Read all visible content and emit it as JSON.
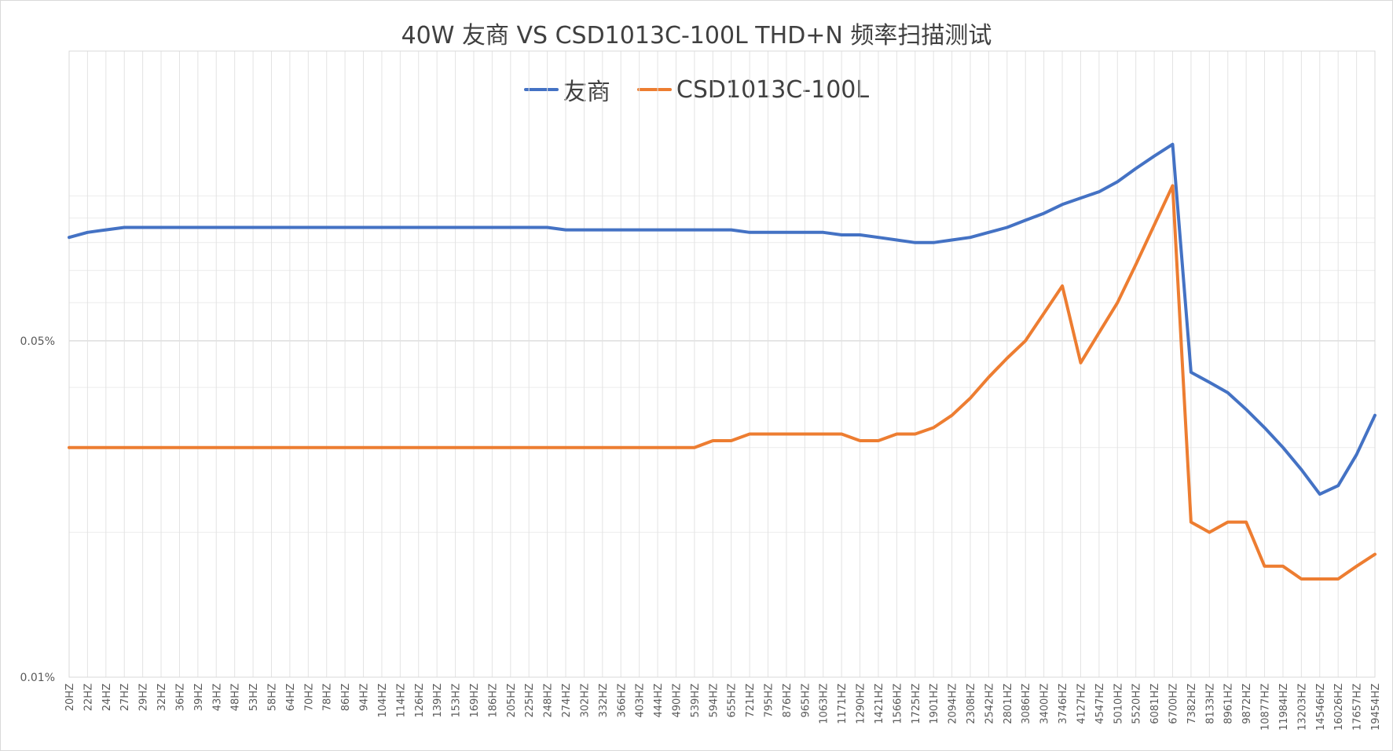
{
  "chart_data": {
    "type": "line",
    "title": "40W 友商 VS CSD1013C-100L THD+N 频率扫描测试",
    "xlabel": "",
    "ylabel": "",
    "y_scale": "log",
    "ylim": [
      0.01,
      0.2
    ],
    "y_ticks": [
      "0.05%",
      "0.01%"
    ],
    "y_tick_values": [
      0.05,
      0.01
    ],
    "grid": true,
    "legend_position": "top",
    "categories": [
      "20HZ",
      "22HZ",
      "24HZ",
      "27HZ",
      "29HZ",
      "32HZ",
      "36HZ",
      "39HZ",
      "43HZ",
      "48HZ",
      "53HZ",
      "58HZ",
      "64HZ",
      "70HZ",
      "78HZ",
      "86HZ",
      "94HZ",
      "104HZ",
      "114HZ",
      "126HZ",
      "139HZ",
      "153HZ",
      "169HZ",
      "186HZ",
      "205HZ",
      "225HZ",
      "248HZ",
      "274HZ",
      "302HZ",
      "332HZ",
      "366HZ",
      "403HZ",
      "444HZ",
      "490HZ",
      "539HZ",
      "594HZ",
      "655HZ",
      "721HZ",
      "795HZ",
      "876HZ",
      "965HZ",
      "1063HZ",
      "1171HZ",
      "1290HZ",
      "1421HZ",
      "1566HZ",
      "1725HZ",
      "1901HZ",
      "2094HZ",
      "2308HZ",
      "2542HZ",
      "2801HZ",
      "3086HZ",
      "3400HZ",
      "3746HZ",
      "4127HZ",
      "4547HZ",
      "5010HZ",
      "5520HZ",
      "6081HZ",
      "6700HZ",
      "7382HZ",
      "8133HZ",
      "8961HZ",
      "9872HZ",
      "10877HZ",
      "11984HZ",
      "13203HZ",
      "14546HZ",
      "16026HZ",
      "17657HZ",
      "19454HZ"
    ],
    "series": [
      {
        "name": "友商",
        "color": "#4472C4",
        "values": [
          0.082,
          0.084,
          0.085,
          0.086,
          0.086,
          0.086,
          0.086,
          0.086,
          0.086,
          0.086,
          0.086,
          0.086,
          0.086,
          0.086,
          0.086,
          0.086,
          0.086,
          0.086,
          0.086,
          0.086,
          0.086,
          0.086,
          0.086,
          0.086,
          0.086,
          0.086,
          0.086,
          0.085,
          0.085,
          0.085,
          0.085,
          0.085,
          0.085,
          0.085,
          0.085,
          0.085,
          0.085,
          0.084,
          0.084,
          0.084,
          0.084,
          0.084,
          0.083,
          0.083,
          0.082,
          0.081,
          0.08,
          0.08,
          0.081,
          0.082,
          0.084,
          0.086,
          0.089,
          0.092,
          0.096,
          0.099,
          0.102,
          0.107,
          0.114,
          0.121,
          0.128,
          0.043,
          0.041,
          0.039,
          0.036,
          0.033,
          0.03,
          0.027,
          0.024,
          0.025,
          0.029,
          0.035
        ]
      },
      {
        "name": "CSD1013C-100L",
        "color": "#ED7D31",
        "values": [
          0.03,
          0.03,
          0.03,
          0.03,
          0.03,
          0.03,
          0.03,
          0.03,
          0.03,
          0.03,
          0.03,
          0.03,
          0.03,
          0.03,
          0.03,
          0.03,
          0.03,
          0.03,
          0.03,
          0.03,
          0.03,
          0.03,
          0.03,
          0.03,
          0.03,
          0.03,
          0.03,
          0.03,
          0.03,
          0.03,
          0.03,
          0.03,
          0.03,
          0.03,
          0.03,
          0.031,
          0.031,
          0.032,
          0.032,
          0.032,
          0.032,
          0.032,
          0.032,
          0.031,
          0.031,
          0.032,
          0.032,
          0.033,
          0.035,
          0.038,
          0.042,
          0.046,
          0.05,
          0.057,
          0.065,
          0.045,
          0.052,
          0.06,
          0.072,
          0.087,
          0.105,
          0.021,
          0.02,
          0.021,
          0.021,
          0.017,
          0.017,
          0.016,
          0.016,
          0.016,
          0.017,
          0.018
        ]
      }
    ]
  }
}
